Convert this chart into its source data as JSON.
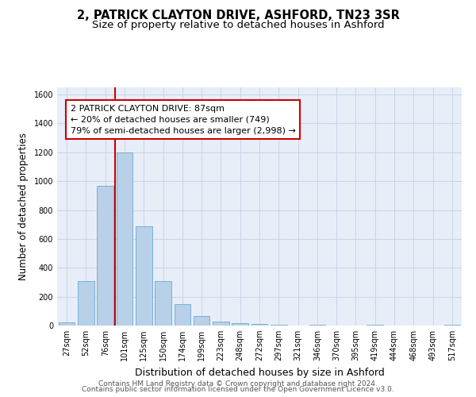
{
  "title": "2, PATRICK CLAYTON DRIVE, ASHFORD, TN23 3SR",
  "subtitle": "Size of property relative to detached houses in Ashford",
  "xlabel": "Distribution of detached houses by size in Ashford",
  "ylabel": "Number of detached properties",
  "categories": [
    "27sqm",
    "52sqm",
    "76sqm",
    "101sqm",
    "125sqm",
    "150sqm",
    "174sqm",
    "199sqm",
    "223sqm",
    "248sqm",
    "272sqm",
    "297sqm",
    "321sqm",
    "346sqm",
    "370sqm",
    "395sqm",
    "419sqm",
    "444sqm",
    "468sqm",
    "493sqm",
    "517sqm"
  ],
  "values": [
    20,
    310,
    970,
    1200,
    690,
    310,
    150,
    65,
    25,
    15,
    10,
    5,
    0,
    5,
    0,
    0,
    5,
    0,
    0,
    0,
    5
  ],
  "bar_color": "#b8d0e8",
  "bar_edgecolor": "#6aaad4",
  "vline_color": "#cc0000",
  "annotation_line1": "2 PATRICK CLAYTON DRIVE: 87sqm",
  "annotation_line2": "← 20% of detached houses are smaller (749)",
  "annotation_line3": "79% of semi-detached houses are larger (2,998) →",
  "annotation_box_color": "#ffffff",
  "annotation_box_edgecolor": "#cc0000",
  "ylim": [
    0,
    1650
  ],
  "yticks": [
    0,
    200,
    400,
    600,
    800,
    1000,
    1200,
    1400,
    1600
  ],
  "grid_color": "#c8d4e8",
  "background_color": "#e8eef8",
  "footer_line1": "Contains HM Land Registry data © Crown copyright and database right 2024.",
  "footer_line2": "Contains public sector information licensed under the Open Government Licence v3.0.",
  "title_fontsize": 10.5,
  "subtitle_fontsize": 9.5,
  "xlabel_fontsize": 9,
  "ylabel_fontsize": 8.5,
  "tick_fontsize": 7,
  "annotation_fontsize": 8,
  "footer_fontsize": 6.5
}
